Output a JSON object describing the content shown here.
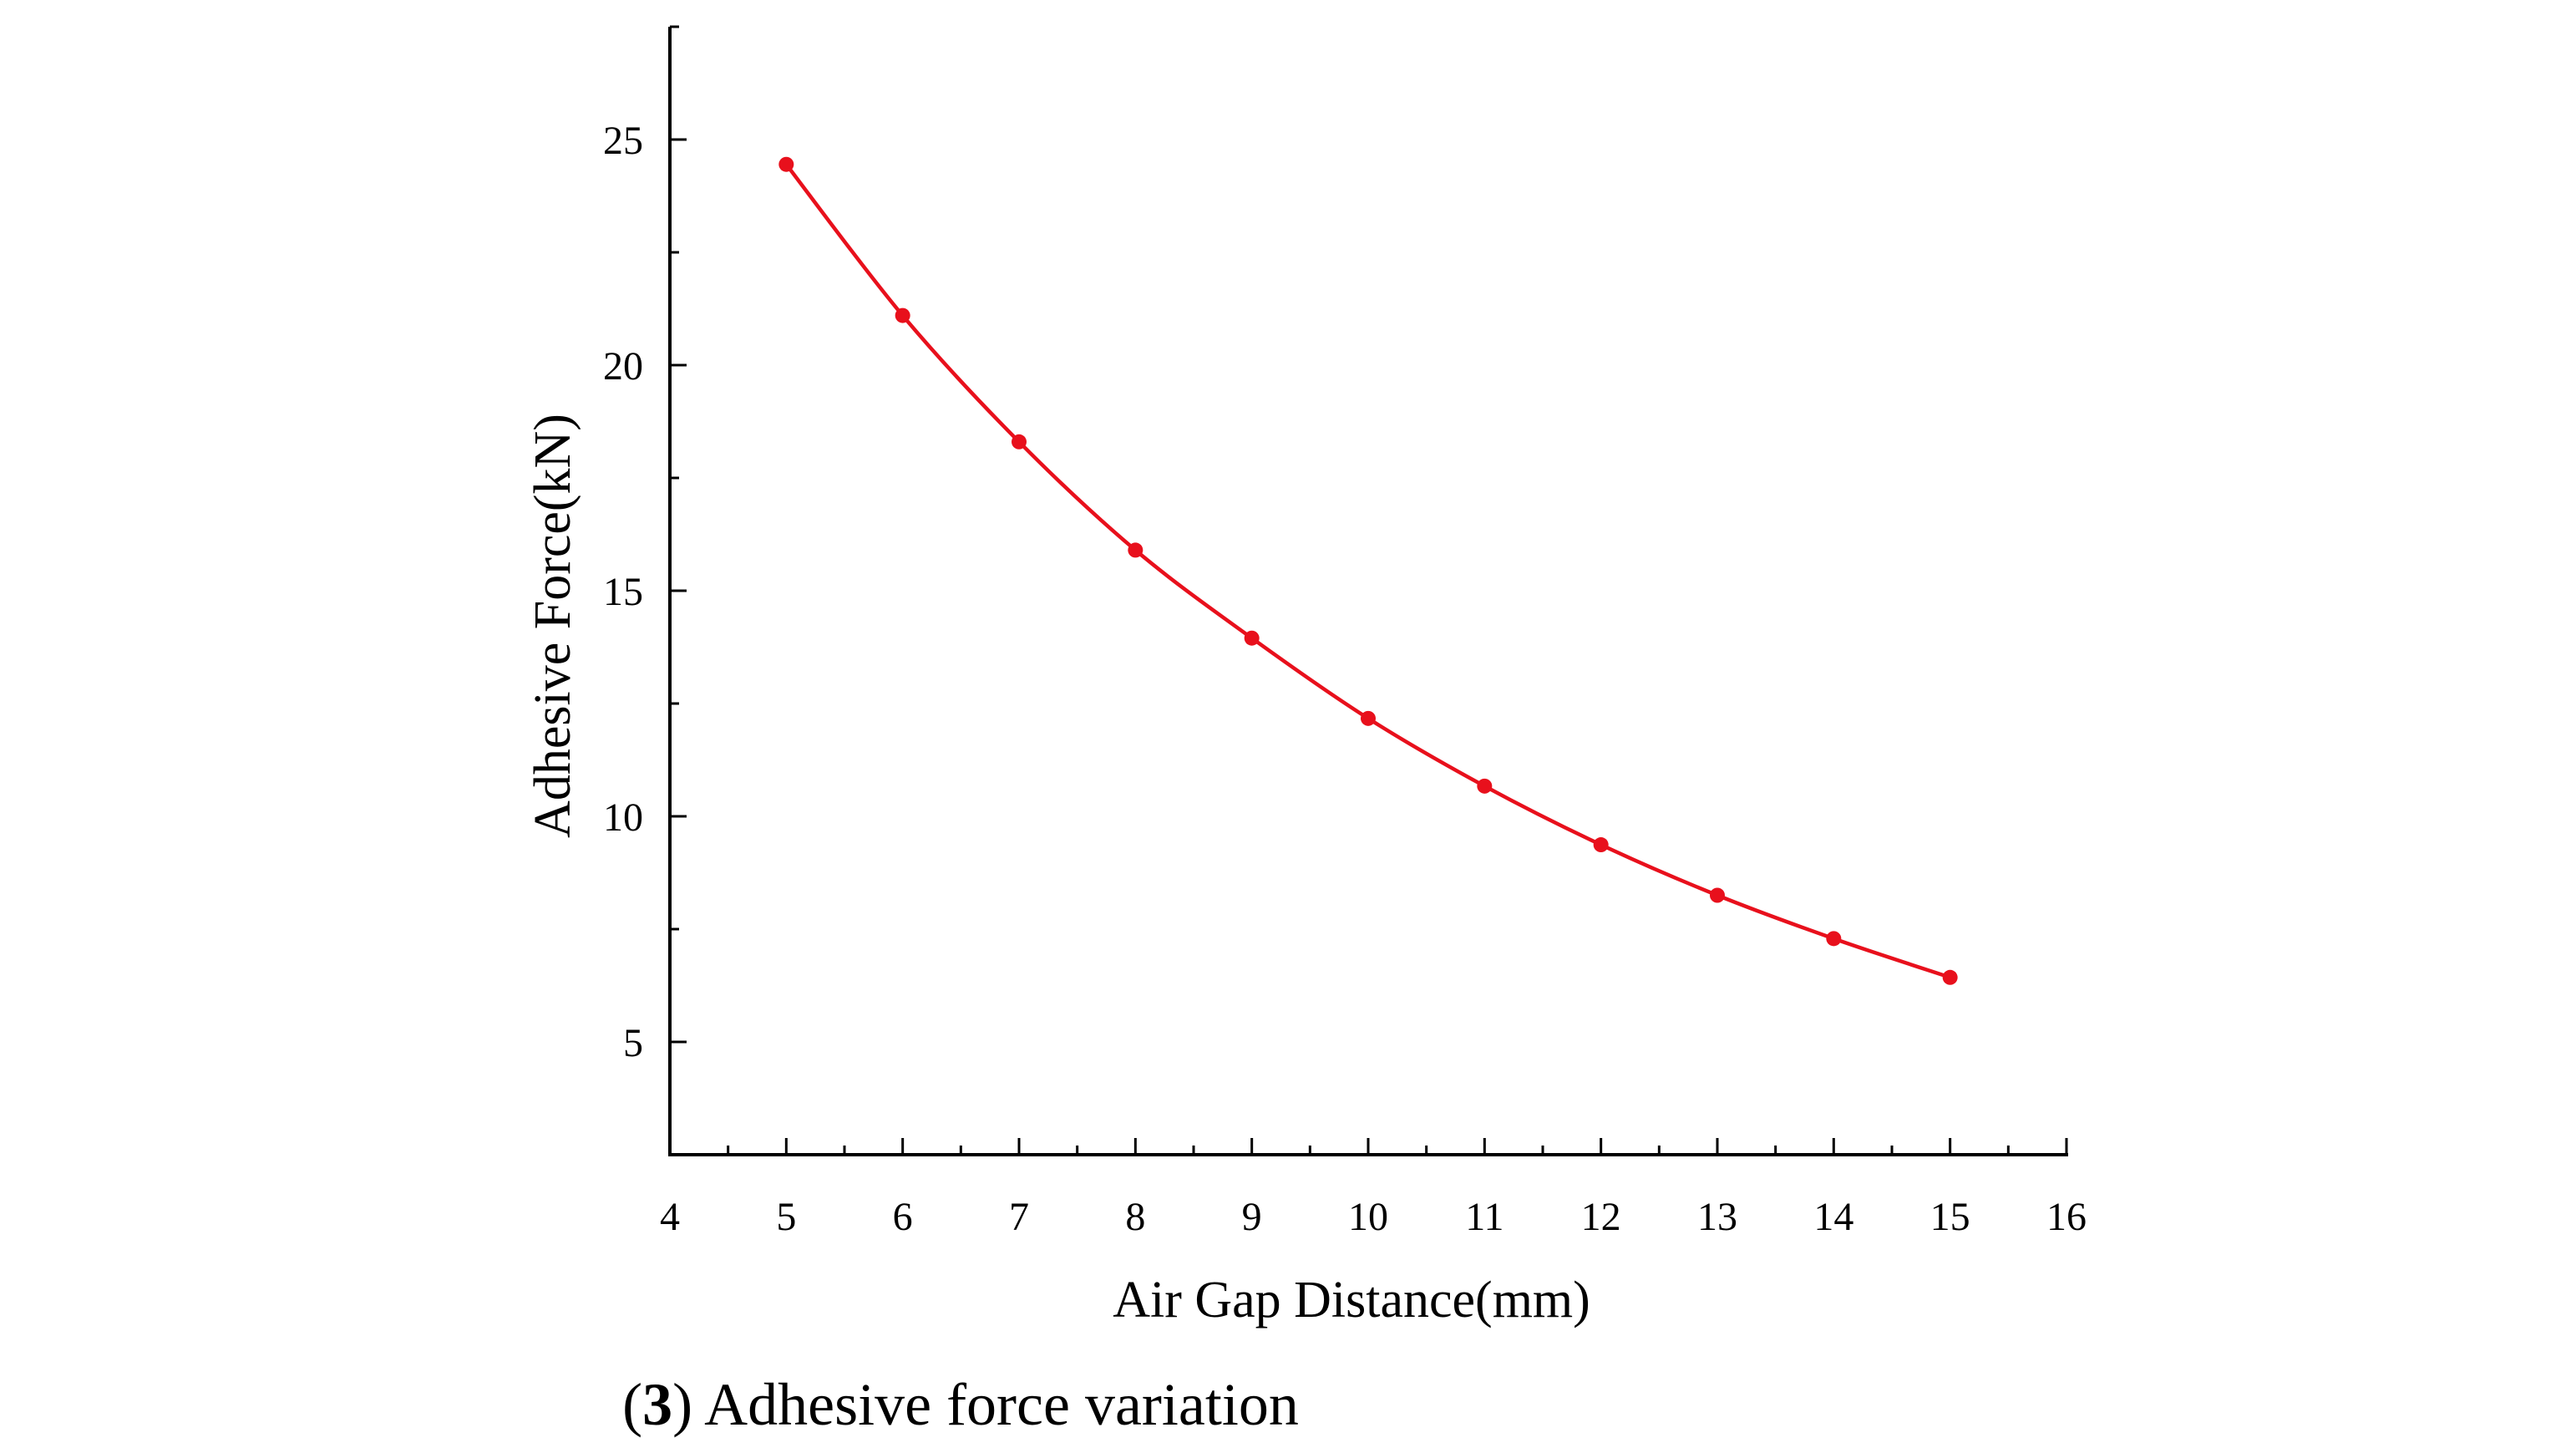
{
  "caption": {
    "open": "(",
    "number": "3",
    "close": ")",
    "text": " Adhesive force variation"
  },
  "colors": {
    "series": "#e8101c",
    "axis": "#000000"
  },
  "chart_data": {
    "type": "line",
    "title": "",
    "xlabel": "Air Gap Distance(mm)",
    "ylabel": "Adhesive Force(kN)",
    "xlim": [
      4,
      16
    ],
    "ylim": [
      2.5,
      27.5
    ],
    "xticks": [
      4,
      5,
      6,
      7,
      8,
      9,
      10,
      11,
      12,
      13,
      14,
      15,
      16
    ],
    "yticks": [
      5,
      10,
      15,
      20,
      25
    ],
    "grid": false,
    "legend": "none",
    "series": [
      {
        "x": [
          5,
          6,
          7,
          8,
          9,
          10,
          11,
          12,
          13,
          14,
          15
        ],
        "values": [
          24.45,
          21.1,
          18.3,
          15.9,
          13.95,
          12.17,
          10.67,
          9.37,
          8.25,
          7.29,
          6.43
        ],
        "marker": "circle",
        "smooth": true
      }
    ]
  }
}
